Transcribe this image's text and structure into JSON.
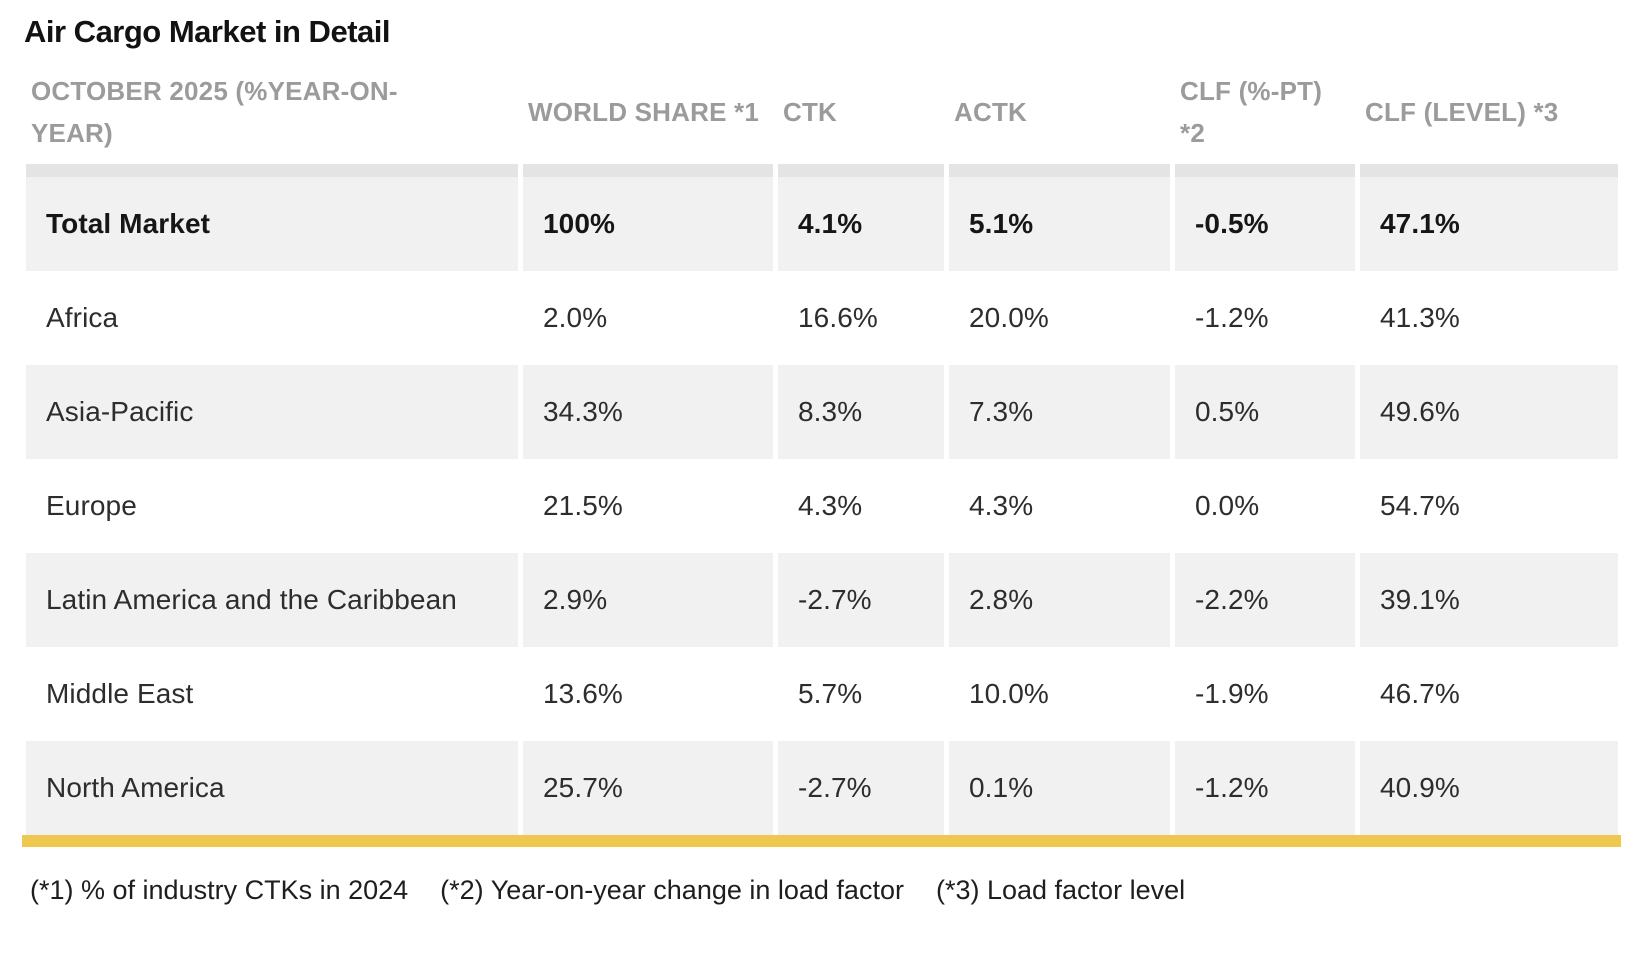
{
  "title": "Air Cargo Market in Detail",
  "table": {
    "columns": [
      {
        "label": "OCTOBER 2025 (%YEAR-ON-YEAR)"
      },
      {
        "label": "WORLD SHARE *1"
      },
      {
        "label": "CTK"
      },
      {
        "label": "ACTK"
      },
      {
        "label": "CLF (%-PT) *2"
      },
      {
        "label": "CLF (LEVEL) *3"
      }
    ],
    "rows": [
      {
        "region": "Total Market",
        "world_share": "100%",
        "ctk": "4.1%",
        "actk": "5.1%",
        "clf_pt": "-0.5%",
        "clf_level": "47.1%"
      },
      {
        "region": "Africa",
        "world_share": "2.0%",
        "ctk": "16.6%",
        "actk": "20.0%",
        "clf_pt": "-1.2%",
        "clf_level": "41.3%"
      },
      {
        "region": "Asia-Pacific",
        "world_share": "34.3%",
        "ctk": "8.3%",
        "actk": "7.3%",
        "clf_pt": "0.5%",
        "clf_level": "49.6%"
      },
      {
        "region": "Europe",
        "world_share": "21.5%",
        "ctk": "4.3%",
        "actk": "4.3%",
        "clf_pt": "0.0%",
        "clf_level": "54.7%"
      },
      {
        "region": "Latin America and the Caribbean",
        "world_share": "2.9%",
        "ctk": "-2.7%",
        "actk": "2.8%",
        "clf_pt": "-2.2%",
        "clf_level": "39.1%"
      },
      {
        "region": "Middle East",
        "world_share": "13.6%",
        "ctk": "5.7%",
        "actk": "10.0%",
        "clf_pt": "-1.9%",
        "clf_level": "46.7%"
      },
      {
        "region": "North America",
        "world_share": "25.7%",
        "ctk": "-2.7%",
        "actk": "0.1%",
        "clf_pt": "-1.2%",
        "clf_level": "40.9%"
      }
    ]
  },
  "footnotes": {
    "note1": "(*1) % of industry CTKs in 2024",
    "note2": "(*2) Year-on-year change in load factor",
    "note3": "(*3) Load factor level"
  },
  "colors": {
    "accent_bar": "#efc94f",
    "row_shade": "#f1f1f1",
    "header_strip": "#e4e4e4",
    "header_text": "#9b9b9b",
    "title_text": "#121212"
  },
  "chart_data": {
    "type": "table",
    "title": "Air Cargo Market in Detail",
    "subtitle": "OCTOBER 2025 (%YEAR-ON-YEAR)",
    "columns": [
      "OCTOBER 2025 (%YEAR-ON-YEAR)",
      "WORLD SHARE *1",
      "CTK",
      "ACTK",
      "CLF (%-PT) *2",
      "CLF (LEVEL) *3"
    ],
    "rows": [
      [
        "Total Market",
        "100%",
        "4.1%",
        "5.1%",
        "-0.5%",
        "47.1%"
      ],
      [
        "Africa",
        "2.0%",
        "16.6%",
        "20.0%",
        "-1.2%",
        "41.3%"
      ],
      [
        "Asia-Pacific",
        "34.3%",
        "8.3%",
        "7.3%",
        "0.5%",
        "49.6%"
      ],
      [
        "Europe",
        "21.5%",
        "4.3%",
        "4.3%",
        "0.0%",
        "54.7%"
      ],
      [
        "Latin America and the Caribbean",
        "2.9%",
        "-2.7%",
        "2.8%",
        "-2.2%",
        "39.1%"
      ],
      [
        "Middle East",
        "13.6%",
        "5.7%",
        "10.0%",
        "-1.9%",
        "46.7%"
      ],
      [
        "North America",
        "25.7%",
        "-2.7%",
        "0.1%",
        "-1.2%",
        "40.9%"
      ]
    ],
    "footnotes": [
      "(*1) % of industry CTKs in 2024",
      "(*2) Year-on-year change in load factor",
      "(*3) Load factor level"
    ]
  }
}
